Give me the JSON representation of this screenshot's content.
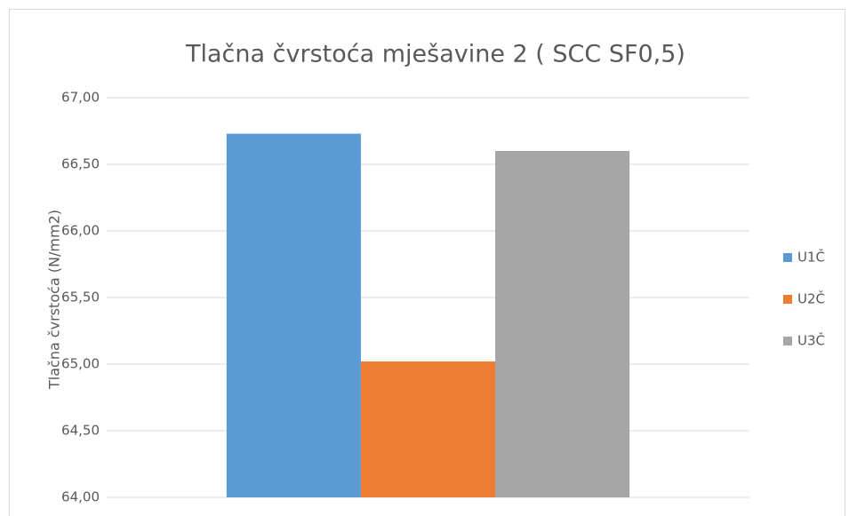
{
  "chart_data": {
    "type": "bar",
    "title": "Tlačna čvrstoća mješavine 2 ( SCC SF0,5)",
    "y_label": "Tlačna čvrstoća (N/mm2)",
    "categories": [
      null
    ],
    "series": [
      {
        "name": "U1Č",
        "color": "#5b9bd5",
        "values": [
          66.73
        ]
      },
      {
        "name": "U2Č",
        "color": "#ed7d31",
        "values": [
          65.02
        ]
      },
      {
        "name": "U3Č",
        "color": "#a5a5a5",
        "values": [
          66.6
        ]
      }
    ],
    "ylim": [
      64,
      67
    ],
    "yticks": [
      {
        "value": 64,
        "label": "64,00"
      },
      {
        "value": 64.5,
        "label": "64,50"
      },
      {
        "value": 65,
        "label": "65,00"
      },
      {
        "value": 65.5,
        "label": "65,50"
      },
      {
        "value": 66,
        "label": "66,00"
      },
      {
        "value": 66.5,
        "label": "66,50"
      },
      {
        "value": 67,
        "label": "67,00"
      }
    ],
    "grid": true,
    "legend": "right"
  }
}
